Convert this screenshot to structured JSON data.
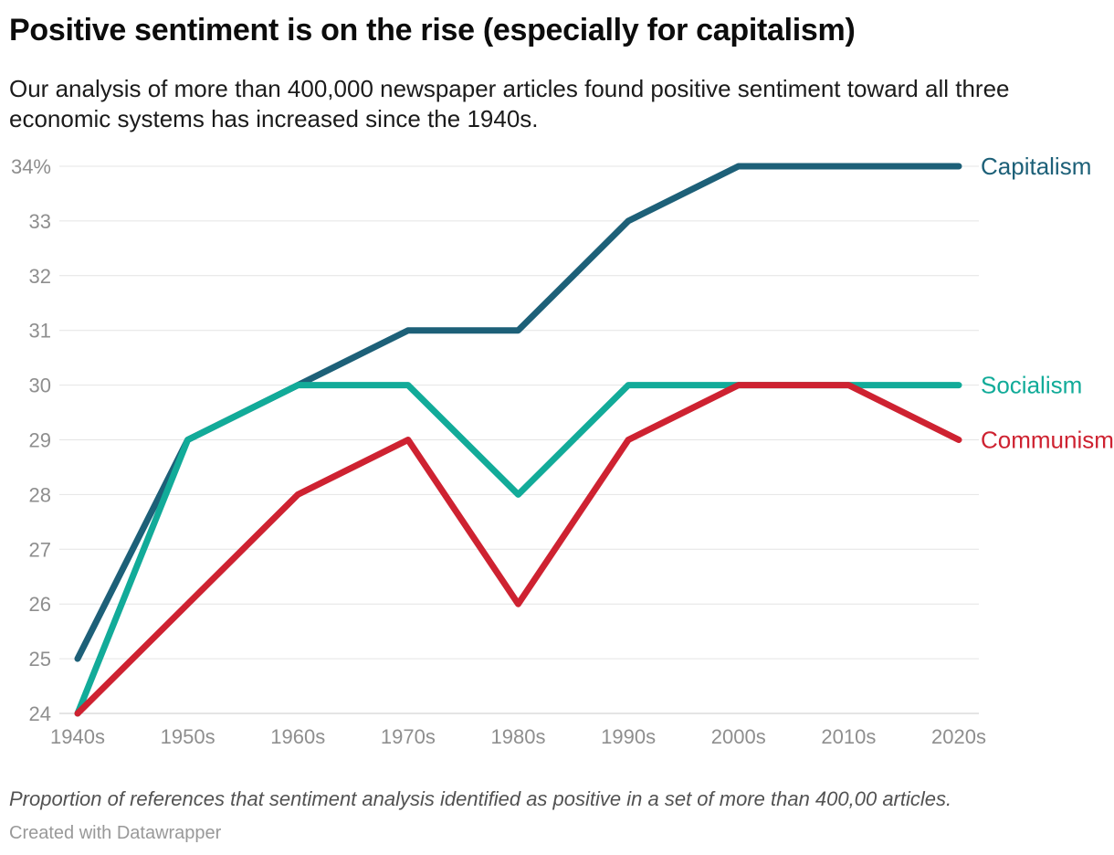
{
  "header": {
    "title": "Positive sentiment is on the rise (especially for capitalism)",
    "subtitle": "Our analysis of more than 400,000 newspaper articles found positive sentiment toward all three economic systems has increased since the 1940s."
  },
  "footer": {
    "note": "Proportion of references that sentiment analysis identified as positive in a set of more than 400,00 articles.",
    "credit": "Created with Datawrapper"
  },
  "colors": {
    "background": "#ffffff",
    "axis_text": "#8e8e8e",
    "grid_line": "#e4e4e4",
    "baseline": "#c8c8c8",
    "title_text": "#0c0c0c",
    "subtitle_text": "#1b1b1b"
  },
  "chart_data": {
    "type": "line",
    "title": "Positive sentiment is on the rise (especially for capitalism)",
    "xlabel": "",
    "ylabel": "",
    "categories": [
      "1940s",
      "1950s",
      "1960s",
      "1970s",
      "1980s",
      "1990s",
      "2000s",
      "2010s",
      "2020s"
    ],
    "series": [
      {
        "name": "Capitalism",
        "color": "#1d6078",
        "values": [
          25,
          29,
          30,
          31,
          31,
          33,
          34,
          34,
          34
        ]
      },
      {
        "name": "Socialism",
        "color": "#12ab99",
        "values": [
          24,
          29,
          30,
          30,
          28,
          30,
          30,
          30,
          30
        ]
      },
      {
        "name": "Communism",
        "color": "#ce2231",
        "values": [
          24,
          26,
          28,
          29,
          26,
          29,
          30,
          30,
          29
        ]
      }
    ],
    "axes": {
      "ylim": [
        24,
        34
      ],
      "ytick_step": 1,
      "ytick_labels": [
        "24",
        "25",
        "26",
        "27",
        "28",
        "29",
        "30",
        "31",
        "32",
        "33",
        "34%"
      ],
      "grid": "horizontal",
      "legend_position": "right-inline-labels"
    }
  }
}
